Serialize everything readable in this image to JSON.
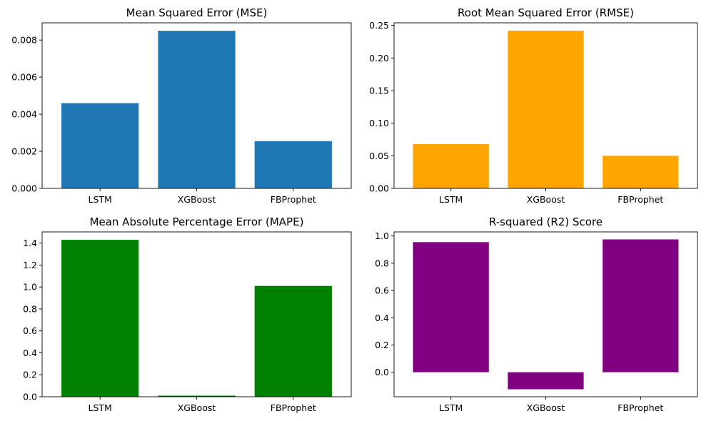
{
  "chart_data": [
    {
      "type": "bar",
      "title": "Mean Squared Error (MSE)",
      "categories": [
        "LSTM",
        "XGBoost",
        "FBProphet"
      ],
      "values": [
        0.0046,
        0.0085,
        0.00255
      ],
      "color": "#1f77b4",
      "ylim": [
        0,
        0.00893
      ],
      "yticks": [
        0.0,
        0.002,
        0.004,
        0.006,
        0.008
      ],
      "ytick_labels": [
        "0.000",
        "0.002",
        "0.004",
        "0.006",
        "0.008"
      ]
    },
    {
      "type": "bar",
      "title": "Root Mean Squared Error (RMSE)",
      "categories": [
        "LSTM",
        "XGBoost",
        "FBProphet"
      ],
      "values": [
        0.068,
        0.242,
        0.05
      ],
      "color": "#ffa500",
      "ylim": [
        0,
        0.254
      ],
      "yticks": [
        0.0,
        0.05,
        0.1,
        0.15,
        0.2,
        0.25
      ],
      "ytick_labels": [
        "0.00",
        "0.05",
        "0.10",
        "0.15",
        "0.20",
        "0.25"
      ]
    },
    {
      "type": "bar",
      "title": "Mean Absolute Percentage Error (MAPE)",
      "categories": [
        "LSTM",
        "XGBoost",
        "FBProphet"
      ],
      "values": [
        1.43,
        0.01,
        1.01
      ],
      "color": "#008000",
      "ylim": [
        0,
        1.502
      ],
      "yticks": [
        0.0,
        0.2,
        0.4,
        0.6,
        0.8,
        1.0,
        1.2,
        1.4
      ],
      "ytick_labels": [
        "0.0",
        "0.2",
        "0.4",
        "0.6",
        "0.8",
        "1.0",
        "1.2",
        "1.4"
      ]
    },
    {
      "type": "bar",
      "title": "R-squared (R2) Score",
      "categories": [
        "LSTM",
        "XGBoost",
        "FBProphet"
      ],
      "values": [
        0.955,
        -0.125,
        0.975
      ],
      "color": "#800080",
      "ylim": [
        -0.18,
        1.03
      ],
      "yticks": [
        0.0,
        0.2,
        0.4,
        0.6,
        0.8,
        1.0
      ],
      "ytick_labels": [
        "0.0",
        "0.2",
        "0.4",
        "0.6",
        "0.8",
        "1.0"
      ]
    }
  ]
}
